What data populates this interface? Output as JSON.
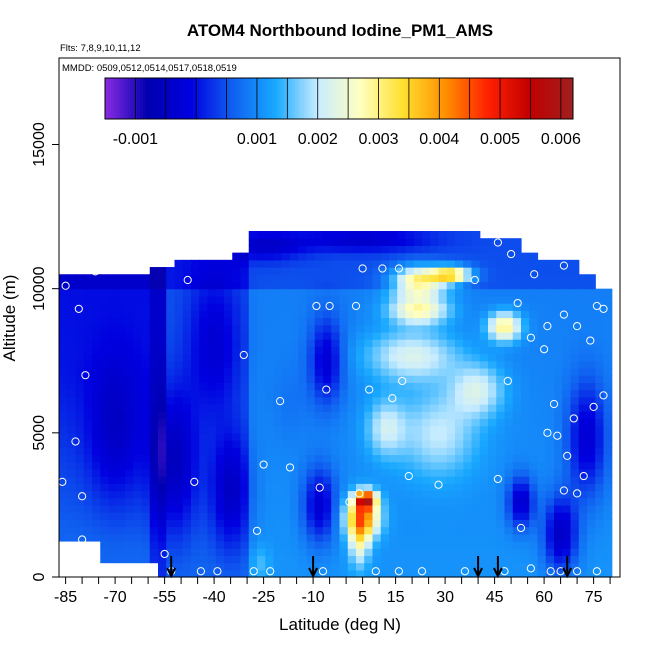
{
  "chart_data": {
    "type": "heatmap",
    "title": "ATOM4 Northbound Iodine_PM1_AMS",
    "subtitle_flights": "Flts: 7,8,9,10,11,12",
    "subtitle_dates": "MMDD: 0509,0512,0514,0517,0518,0519",
    "xlabel": "Latitude (deg N)",
    "ylabel": "Altitude (m)",
    "xlim": [
      -87,
      83
    ],
    "ylim": [
      0,
      18000
    ],
    "x_ticks": [
      -85,
      -70,
      -55,
      -40,
      -25,
      -10,
      5,
      15,
      30,
      45,
      60,
      75
    ],
    "x_tick_labels": [
      "-85",
      "-70",
      "-55",
      "-40",
      "-25",
      "-10",
      "5",
      "15",
      "30",
      "45",
      "60",
      "75"
    ],
    "y_ticks": [
      0,
      5000,
      10000,
      15000
    ],
    "y_tick_labels": [
      "0",
      "5000",
      "10000",
      "15000"
    ],
    "colorbar": {
      "range": [
        -0.0015,
        0.0062
      ],
      "ticks": [
        -0.001,
        0.001,
        0.002,
        0.003,
        0.004,
        0.005,
        0.006
      ],
      "tick_labels": [
        "-0.001",
        "0.001",
        "0.002",
        "0.003",
        "0.004",
        "0.005",
        "0.006"
      ],
      "colors": [
        "#8a2be2",
        "#0000b0",
        "#0000e0",
        "#1060f0",
        "#18a8ff",
        "#c8ecff",
        "#ffffc0",
        "#ffe030",
        "#ff9000",
        "#ff2000",
        "#c00000",
        "#a02020"
      ]
    },
    "profile_arrow_latitudes": [
      -53,
      -10,
      40,
      46,
      67
    ],
    "observation_points": [
      {
        "x": -85,
        "y": 10100
      },
      {
        "x": -81,
        "y": 9300
      },
      {
        "x": -76,
        "y": 10600
      },
      {
        "x": -79,
        "y": 7000
      },
      {
        "x": -82,
        "y": 4700
      },
      {
        "x": -80,
        "y": 2800
      },
      {
        "x": -80,
        "y": 1300
      },
      {
        "x": -86,
        "y": 3300
      },
      {
        "x": -48,
        "y": 10300
      },
      {
        "x": -31,
        "y": 7700
      },
      {
        "x": -25,
        "y": 3900
      },
      {
        "x": -46,
        "y": 3300
      },
      {
        "x": -20,
        "y": 6100
      },
      {
        "x": -17,
        "y": 3800
      },
      {
        "x": -27,
        "y": 1600
      },
      {
        "x": -55,
        "y": 800
      },
      {
        "x": -53,
        "y": 200
      },
      {
        "x": -44,
        "y": 200
      },
      {
        "x": -39,
        "y": 200
      },
      {
        "x": -28,
        "y": 200
      },
      {
        "x": -23,
        "y": 200
      },
      {
        "x": -9,
        "y": 9400
      },
      {
        "x": -5,
        "y": 9400
      },
      {
        "x": -6,
        "y": 6500
      },
      {
        "x": -8,
        "y": 3100
      },
      {
        "x": 1,
        "y": 2600
      },
      {
        "x": 3,
        "y": 9400
      },
      {
        "x": 5,
        "y": 10700
      },
      {
        "x": 11,
        "y": 10700
      },
      {
        "x": 16,
        "y": 10700
      },
      {
        "x": 7,
        "y": 6500
      },
      {
        "x": 14,
        "y": 6200
      },
      {
        "x": 17,
        "y": 6800
      },
      {
        "x": 19,
        "y": 3500
      },
      {
        "x": 28,
        "y": 3200
      },
      {
        "x": 4,
        "y": 2900
      },
      {
        "x": -7,
        "y": 200
      },
      {
        "x": 9,
        "y": 200
      },
      {
        "x": 16,
        "y": 200
      },
      {
        "x": 23,
        "y": 200
      },
      {
        "x": 36,
        "y": 200
      },
      {
        "x": 46,
        "y": 3400
      },
      {
        "x": 39,
        "y": 10300
      },
      {
        "x": 46,
        "y": 11600
      },
      {
        "x": 50,
        "y": 11200
      },
      {
        "x": 57,
        "y": 10500
      },
      {
        "x": 66,
        "y": 10800
      },
      {
        "x": 72,
        "y": 10700
      },
      {
        "x": 52,
        "y": 9500
      },
      {
        "x": 56,
        "y": 8300
      },
      {
        "x": 61,
        "y": 8700
      },
      {
        "x": 60,
        "y": 7900
      },
      {
        "x": 66,
        "y": 9100
      },
      {
        "x": 70,
        "y": 8700
      },
      {
        "x": 76,
        "y": 9400
      },
      {
        "x": 78,
        "y": 9300
      },
      {
        "x": 74,
        "y": 8200
      },
      {
        "x": 49,
        "y": 6800
      },
      {
        "x": 63,
        "y": 6000
      },
      {
        "x": 69,
        "y": 5500
      },
      {
        "x": 78,
        "y": 6300
      },
      {
        "x": 75,
        "y": 5900
      },
      {
        "x": 61,
        "y": 5000
      },
      {
        "x": 64,
        "y": 4900
      },
      {
        "x": 67,
        "y": 4200
      },
      {
        "x": 72,
        "y": 3500
      },
      {
        "x": 66,
        "y": 3000
      },
      {
        "x": 70,
        "y": 2900
      },
      {
        "x": 53,
        "y": 1700
      },
      {
        "x": 48,
        "y": 200
      },
      {
        "x": 56,
        "y": 300
      },
      {
        "x": 62,
        "y": 200
      },
      {
        "x": 65,
        "y": 200
      },
      {
        "x": 70,
        "y": 200
      },
      {
        "x": 76,
        "y": 200
      }
    ],
    "features": [
      {
        "x": 5,
        "y": 2100,
        "value": 0.004,
        "dx": 5,
        "dy": 700
      },
      {
        "x": 6,
        "y": 2700,
        "value": 0.0048,
        "dx": 3,
        "dy": 300
      },
      {
        "x": 4,
        "y": 1300,
        "value": 0.0025,
        "dx": 3,
        "dy": 900
      },
      {
        "x": 22,
        "y": 10300,
        "value": 0.003,
        "dx": 8,
        "dy": 500
      },
      {
        "x": 32,
        "y": 10500,
        "value": 0.0033,
        "dx": 6,
        "dy": 300
      },
      {
        "x": 22,
        "y": 9300,
        "value": 0.0028,
        "dx": 9,
        "dy": 500
      },
      {
        "x": 48,
        "y": 8700,
        "value": 0.003,
        "dx": 5,
        "dy": 500
      },
      {
        "x": 20,
        "y": 7700,
        "value": 0.0022,
        "dx": 14,
        "dy": 900
      },
      {
        "x": 28,
        "y": 5000,
        "value": 0.002,
        "dx": 12,
        "dy": 1500
      },
      {
        "x": 40,
        "y": 6500,
        "value": 0.0021,
        "dx": 8,
        "dy": 900
      },
      {
        "x": -70,
        "y": 5000,
        "value": -0.0005,
        "dx": 8,
        "dy": 2500
      },
      {
        "x": -52,
        "y": 4000,
        "value": -0.0006,
        "dx": 7,
        "dy": 2500
      },
      {
        "x": -35,
        "y": 3000,
        "value": -0.0005,
        "dx": 6,
        "dy": 2000
      },
      {
        "x": -40,
        "y": 8000,
        "value": -0.0003,
        "dx": 8,
        "dy": 2500
      },
      {
        "x": -6,
        "y": 7500,
        "value": -0.0003,
        "dx": 5,
        "dy": 1500
      },
      {
        "x": -8,
        "y": 2500,
        "value": -0.0003,
        "dx": 5,
        "dy": 1300
      },
      {
        "x": 65,
        "y": 1500,
        "value": -0.0005,
        "dx": 5,
        "dy": 1300
      },
      {
        "x": 53,
        "y": 2600,
        "value": -0.0004,
        "dx": 4,
        "dy": 900
      },
      {
        "x": 73,
        "y": 4800,
        "value": -0.0003,
        "dx": 6,
        "dy": 2000
      },
      {
        "x": -25,
        "y": 11500,
        "value": -0.0004,
        "dx": 12,
        "dy": 500
      },
      {
        "x": 5,
        "y": 11700,
        "value": -0.0004,
        "dx": 20,
        "dy": 400
      },
      {
        "x": -26,
        "y": 500,
        "value": 0.0015,
        "dx": 3,
        "dy": 600
      },
      {
        "x": -17,
        "y": 6000,
        "value": 0.0008,
        "dx": 6,
        "dy": 1500
      },
      {
        "x": 12,
        "y": 5200,
        "value": 0.002,
        "dx": 6,
        "dy": 1000
      }
    ]
  }
}
